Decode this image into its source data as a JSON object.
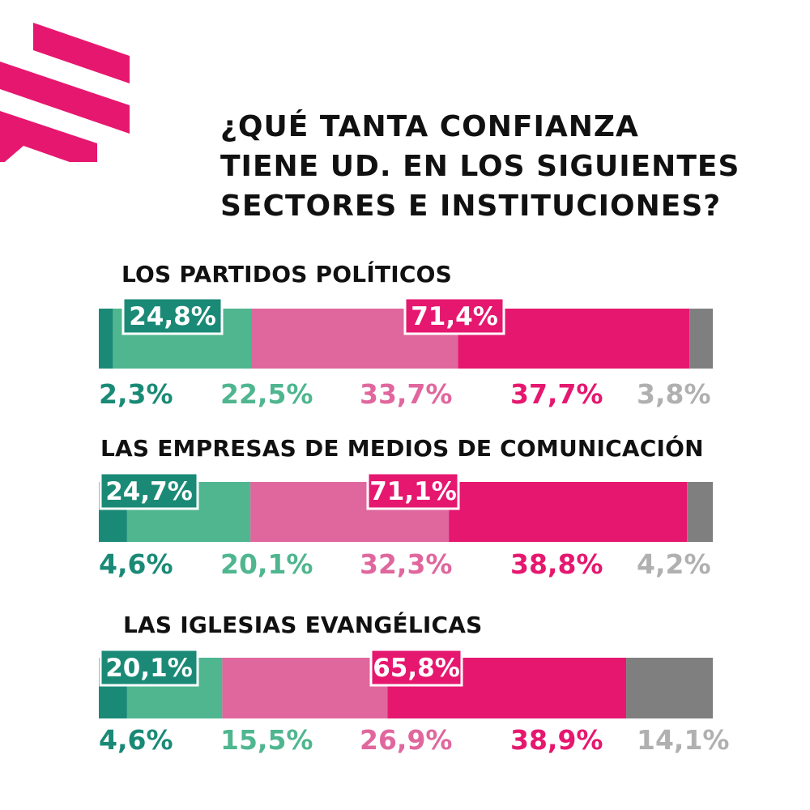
{
  "title_lines": [
    "¿QUÉ TANTA CONFIANZA",
    "TIENE UD. EN LOS SIGUIENTES",
    "SECTORES E INSTITUCIONES?"
  ],
  "colors": {
    "brand": "#e6176f",
    "dark_green": "#1a8a76",
    "light_green": "#4fb68f",
    "light_pink": "#e0679d",
    "dark_pink": "#e6176f",
    "gray_bar": "#7f7f7f",
    "gray_text": "#b0b0b0"
  },
  "chart_data": {
    "type": "bar",
    "orientation": "horizontal",
    "stacked": true,
    "title": "¿QUÉ TANTA CONFIANZA TIENE UD. EN LOS SIGUIENTES SECTORES E INSTITUCIONES?",
    "xlabel": "",
    "ylabel": "",
    "xlim": [
      0,
      100
    ],
    "grid": false,
    "legend": "none",
    "categories": [
      "LOS PARTIDOS POLÍTICOS",
      "LAS EMPRESAS DE MEDIOS DE COMUNICACIÓN",
      "LAS IGLESIAS EVANGÉLICAS"
    ],
    "series": [
      {
        "name": "segment-1",
        "color": "#1a8a76",
        "values": [
          2.3,
          4.6,
          4.6
        ],
        "labels": [
          "2,3%",
          "4,6%",
          "4,6%"
        ]
      },
      {
        "name": "segment-2",
        "color": "#4fb68f",
        "values": [
          22.5,
          20.1,
          15.5
        ],
        "labels": [
          "22,5%",
          "20,1%",
          "15,5%"
        ]
      },
      {
        "name": "segment-3",
        "color": "#e0679d",
        "values": [
          33.7,
          32.3,
          26.9
        ],
        "labels": [
          "33,7%",
          "32,3%",
          "26,9%"
        ]
      },
      {
        "name": "segment-4",
        "color": "#e6176f",
        "values": [
          37.7,
          38.8,
          38.9
        ],
        "labels": [
          "37,7%",
          "38,8%",
          "38,9%"
        ]
      },
      {
        "name": "segment-5",
        "color": "#7f7f7f",
        "label_color": "#b0b0b0",
        "values": [
          3.8,
          4.2,
          14.1
        ],
        "labels": [
          "3,8%",
          "4,2%",
          "14,1%"
        ]
      }
    ],
    "callouts": [
      {
        "green_total": 24.8,
        "green_label": "24,8%",
        "pink_total": 71.4,
        "pink_label": "71,4%"
      },
      {
        "green_total": 24.7,
        "green_label": "24,7%",
        "pink_total": 71.1,
        "pink_label": "71,1%"
      },
      {
        "green_total": 20.1,
        "green_label": "20,1%",
        "pink_total": 65.8,
        "pink_label": "65,8%"
      }
    ]
  }
}
